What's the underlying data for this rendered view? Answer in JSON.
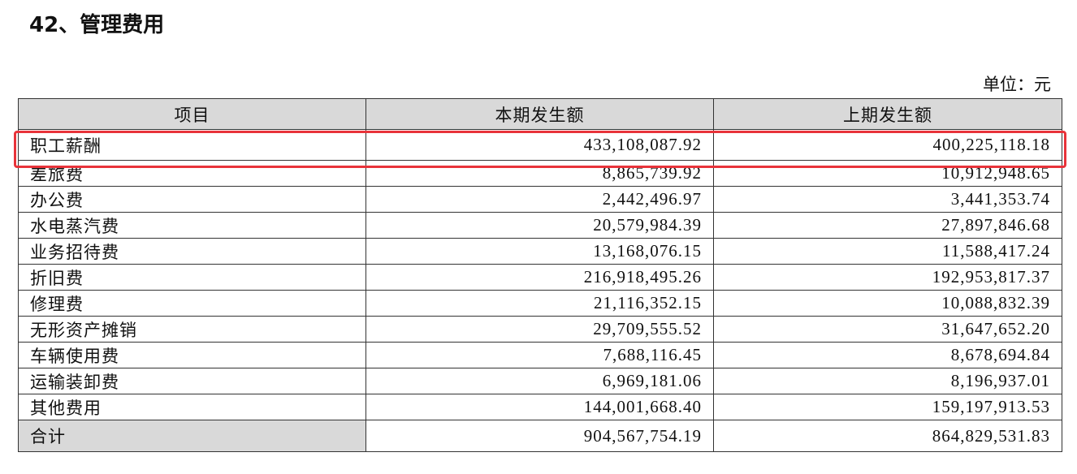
{
  "header": {
    "title": "42、管理费用",
    "unit": "单位：元"
  },
  "table": {
    "columns": [
      "项目",
      "本期发生额",
      "上期发生额"
    ],
    "rows": [
      [
        "职工薪酬",
        "433,108,087.92",
        "400,225,118.18"
      ],
      [
        "差旅费",
        "8,865,739.92",
        "10,912,948.65"
      ],
      [
        "办公费",
        "2,442,496.97",
        "3,441,353.74"
      ],
      [
        "水电蒸汽费",
        "20,579,984.39",
        "27,897,846.68"
      ],
      [
        "业务招待费",
        "13,168,076.15",
        "11,588,417.24"
      ],
      [
        "折旧费",
        "216,918,495.26",
        "192,953,817.37"
      ],
      [
        "修理费",
        "21,116,352.15",
        "10,088,832.39"
      ],
      [
        "无形资产摊销",
        "29,709,555.52",
        "31,647,652.20"
      ],
      [
        "车辆使用费",
        "7,688,116.45",
        "8,678,694.84"
      ],
      [
        "运输装卸费",
        "6,969,181.06",
        "8,196,937.01"
      ],
      [
        "其他费用",
        "144,001,668.40",
        "159,197,913.53"
      ],
      [
        "合计",
        "904,567,754.19",
        "864,829,531.83"
      ]
    ]
  }
}
